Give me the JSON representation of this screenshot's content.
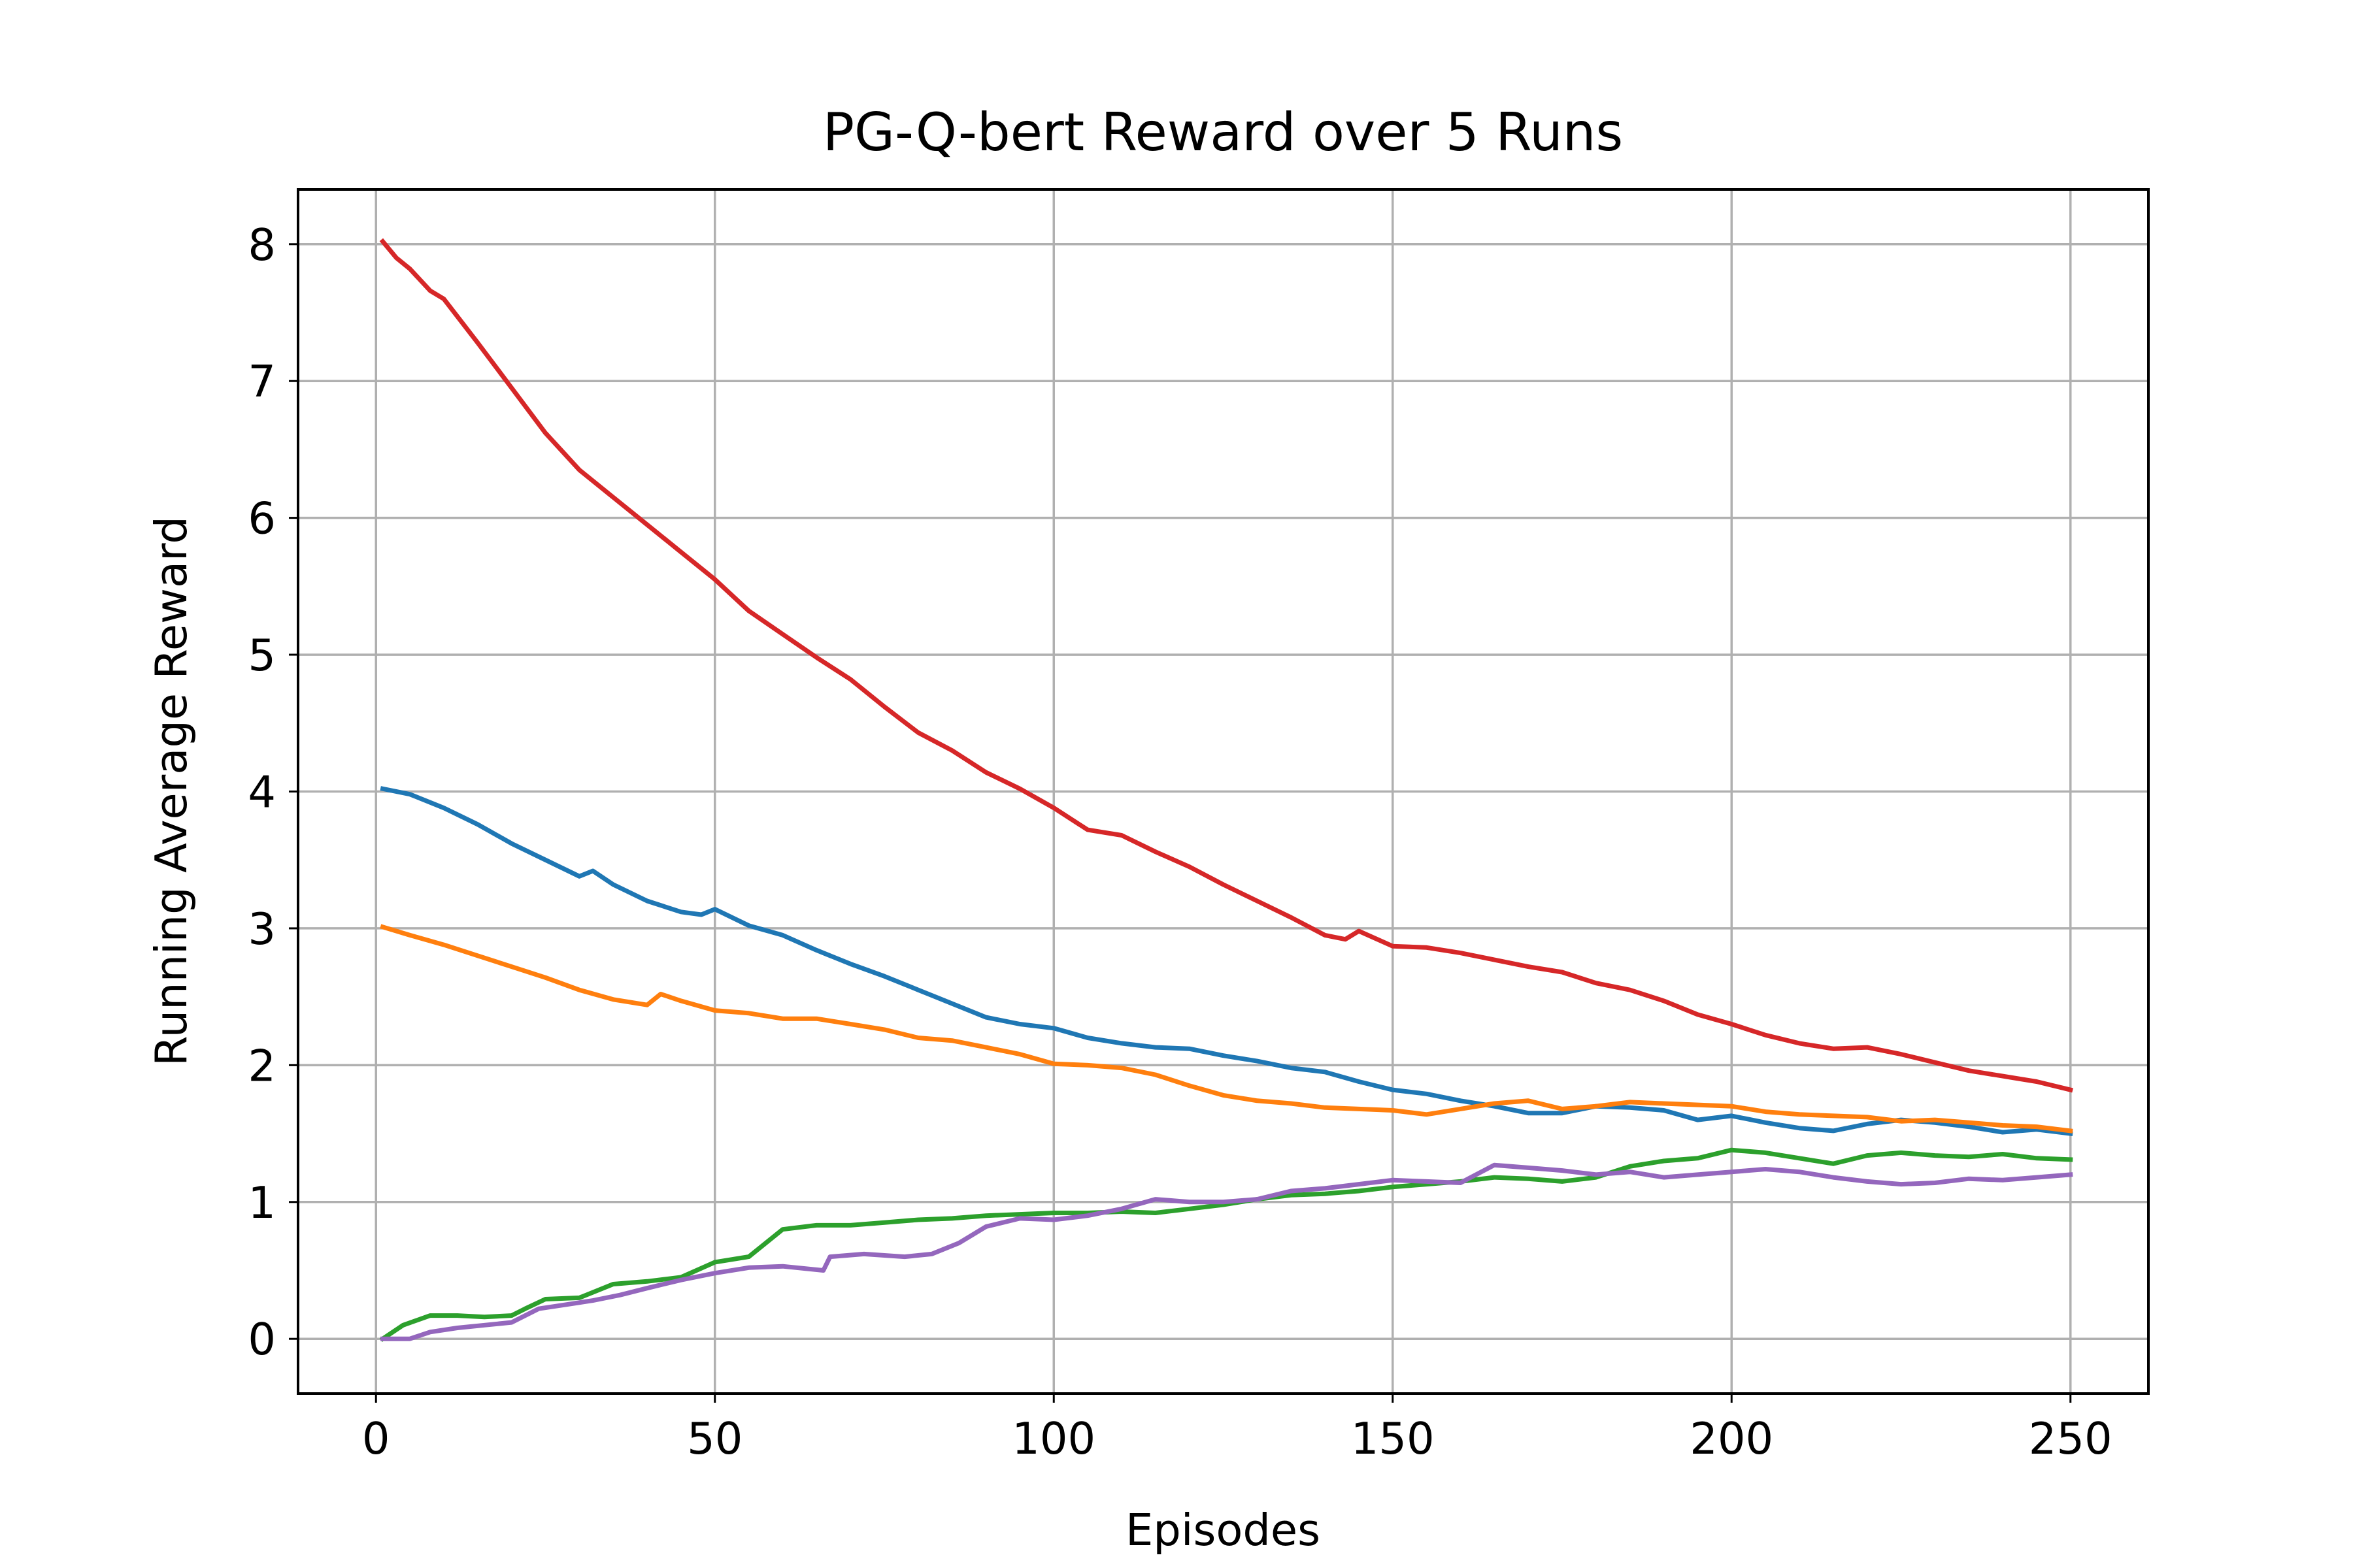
{
  "chart_data": {
    "type": "line",
    "title": "PG-Q-bert Reward over 5 Runs",
    "xlabel": "Episodes",
    "ylabel": "Running Average Reward",
    "xlim": [
      -11.5,
      261.5
    ],
    "ylim": [
      -0.4,
      8.4
    ],
    "xticks": [
      0,
      50,
      100,
      150,
      200,
      250
    ],
    "yticks": [
      0,
      1,
      2,
      3,
      4,
      5,
      6,
      7,
      8
    ],
    "grid": true,
    "legend": "none",
    "series": [
      {
        "color": "#1f77b4",
        "x": [
          1,
          5,
          10,
          15,
          20,
          25,
          30,
          32,
          35,
          40,
          45,
          48,
          50,
          55,
          60,
          65,
          70,
          75,
          80,
          85,
          90,
          95,
          100,
          105,
          110,
          115,
          120,
          125,
          130,
          135,
          140,
          145,
          150,
          155,
          160,
          165,
          170,
          175,
          180,
          185,
          190,
          195,
          200,
          205,
          210,
          215,
          220,
          225,
          230,
          235,
          240,
          245,
          250
        ],
        "y": [
          4.02,
          3.98,
          3.88,
          3.76,
          3.62,
          3.5,
          3.38,
          3.42,
          3.32,
          3.2,
          3.12,
          3.1,
          3.14,
          3.02,
          2.95,
          2.84,
          2.74,
          2.65,
          2.55,
          2.45,
          2.35,
          2.3,
          2.27,
          2.2,
          2.16,
          2.13,
          2.12,
          2.07,
          2.03,
          1.98,
          1.95,
          1.88,
          1.82,
          1.79,
          1.74,
          1.7,
          1.65,
          1.65,
          1.7,
          1.69,
          1.67,
          1.6,
          1.63,
          1.58,
          1.54,
          1.52,
          1.57,
          1.6,
          1.58,
          1.55,
          1.51,
          1.53,
          1.5
        ]
      },
      {
        "color": "#ff7f0e",
        "x": [
          1,
          5,
          10,
          15,
          20,
          25,
          30,
          35,
          40,
          42,
          45,
          50,
          55,
          60,
          65,
          70,
          75,
          80,
          85,
          90,
          95,
          100,
          105,
          110,
          115,
          120,
          125,
          130,
          135,
          140,
          145,
          150,
          155,
          160,
          165,
          170,
          175,
          180,
          185,
          190,
          195,
          200,
          205,
          210,
          215,
          220,
          225,
          230,
          235,
          240,
          245,
          250
        ],
        "y": [
          3.01,
          2.95,
          2.88,
          2.8,
          2.72,
          2.64,
          2.55,
          2.48,
          2.44,
          2.52,
          2.47,
          2.4,
          2.38,
          2.34,
          2.34,
          2.3,
          2.26,
          2.2,
          2.18,
          2.13,
          2.08,
          2.01,
          2.0,
          1.98,
          1.93,
          1.85,
          1.78,
          1.74,
          1.72,
          1.69,
          1.68,
          1.67,
          1.64,
          1.68,
          1.72,
          1.74,
          1.68,
          1.7,
          1.73,
          1.72,
          1.71,
          1.7,
          1.66,
          1.64,
          1.63,
          1.62,
          1.59,
          1.6,
          1.58,
          1.56,
          1.55,
          1.52
        ]
      },
      {
        "color": "#2ca02c",
        "x": [
          1,
          4,
          8,
          12,
          16,
          20,
          22,
          25,
          30,
          35,
          40,
          45,
          50,
          55,
          60,
          65,
          70,
          75,
          80,
          85,
          90,
          95,
          100,
          105,
          110,
          115,
          120,
          125,
          130,
          135,
          140,
          145,
          150,
          155,
          160,
          165,
          170,
          175,
          180,
          185,
          190,
          195,
          200,
          205,
          210,
          215,
          220,
          225,
          230,
          235,
          240,
          245,
          250
        ],
        "y": [
          0.0,
          0.1,
          0.17,
          0.17,
          0.16,
          0.17,
          0.22,
          0.29,
          0.3,
          0.4,
          0.42,
          0.45,
          0.56,
          0.6,
          0.8,
          0.83,
          0.83,
          0.85,
          0.87,
          0.88,
          0.9,
          0.91,
          0.92,
          0.92,
          0.93,
          0.92,
          0.95,
          0.98,
          1.02,
          1.05,
          1.06,
          1.08,
          1.11,
          1.13,
          1.15,
          1.18,
          1.17,
          1.15,
          1.18,
          1.26,
          1.3,
          1.32,
          1.38,
          1.36,
          1.32,
          1.28,
          1.34,
          1.36,
          1.34,
          1.33,
          1.35,
          1.32,
          1.31
        ]
      },
      {
        "color": "#d62728",
        "x": [
          1,
          3,
          5,
          8,
          10,
          15,
          20,
          25,
          30,
          35,
          40,
          45,
          50,
          55,
          60,
          65,
          70,
          75,
          80,
          85,
          90,
          95,
          100,
          105,
          110,
          115,
          120,
          125,
          130,
          135,
          140,
          143,
          145,
          150,
          155,
          160,
          165,
          170,
          175,
          180,
          185,
          190,
          195,
          200,
          205,
          210,
          215,
          220,
          225,
          230,
          235,
          240,
          245,
          250
        ],
        "y": [
          8.02,
          7.9,
          7.82,
          7.66,
          7.6,
          7.28,
          6.95,
          6.62,
          6.35,
          6.15,
          5.95,
          5.75,
          5.55,
          5.32,
          5.15,
          4.98,
          4.82,
          4.62,
          4.43,
          4.3,
          4.14,
          4.02,
          3.88,
          3.72,
          3.68,
          3.56,
          3.45,
          3.32,
          3.2,
          3.08,
          2.95,
          2.92,
          2.98,
          2.87,
          2.86,
          2.82,
          2.77,
          2.72,
          2.68,
          2.6,
          2.55,
          2.47,
          2.37,
          2.3,
          2.22,
          2.16,
          2.12,
          2.13,
          2.08,
          2.02,
          1.96,
          1.92,
          1.88,
          1.82
        ]
      },
      {
        "color": "#9467bd",
        "x": [
          1,
          5,
          8,
          12,
          16,
          20,
          24,
          28,
          32,
          36,
          40,
          45,
          50,
          55,
          60,
          66,
          67,
          72,
          78,
          82,
          86,
          90,
          95,
          100,
          105,
          110,
          115,
          120,
          125,
          130,
          135,
          140,
          145,
          150,
          155,
          160,
          165,
          170,
          175,
          180,
          185,
          190,
          195,
          200,
          205,
          210,
          215,
          220,
          225,
          230,
          235,
          240,
          245,
          250
        ],
        "y": [
          0.0,
          0.0,
          0.05,
          0.08,
          0.1,
          0.12,
          0.22,
          0.25,
          0.28,
          0.32,
          0.37,
          0.43,
          0.48,
          0.52,
          0.53,
          0.5,
          0.6,
          0.62,
          0.6,
          0.62,
          0.7,
          0.82,
          0.88,
          0.87,
          0.9,
          0.95,
          1.02,
          1.0,
          1.0,
          1.02,
          1.08,
          1.1,
          1.13,
          1.16,
          1.15,
          1.14,
          1.27,
          1.25,
          1.23,
          1.2,
          1.22,
          1.18,
          1.2,
          1.22,
          1.24,
          1.22,
          1.18,
          1.15,
          1.13,
          1.14,
          1.17,
          1.16,
          1.18,
          1.2
        ]
      }
    ]
  }
}
